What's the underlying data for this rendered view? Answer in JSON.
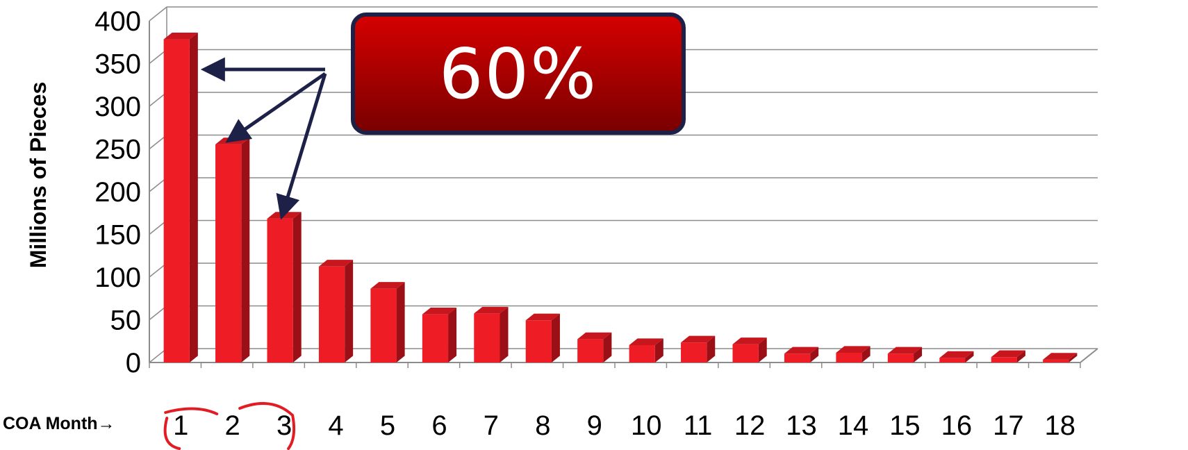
{
  "chart_data": {
    "type": "bar",
    "categories": [
      "1",
      "2",
      "3",
      "4",
      "5",
      "6",
      "7",
      "8",
      "9",
      "10",
      "11",
      "12",
      "13",
      "14",
      "15",
      "16",
      "17",
      "18"
    ],
    "values": [
      380,
      257,
      170,
      114,
      88,
      58,
      59,
      51,
      29,
      22,
      25,
      23,
      12,
      13,
      12,
      7,
      8,
      5
    ],
    "ylabel": "Millions of Pieces",
    "xlabel": "COA Month→",
    "ylim": [
      0,
      400
    ],
    "yticks": [
      0,
      50,
      100,
      150,
      200,
      250,
      300,
      350,
      400
    ],
    "grid": true,
    "bar_color": "#ee1c25",
    "annotation": {
      "text": "60%",
      "targets": [
        "1",
        "2",
        "3"
      ],
      "box_color": "#c00000",
      "border_color": "#1e2147",
      "arrow_color": "#1e2147",
      "circle_color": "#e31b23"
    }
  }
}
